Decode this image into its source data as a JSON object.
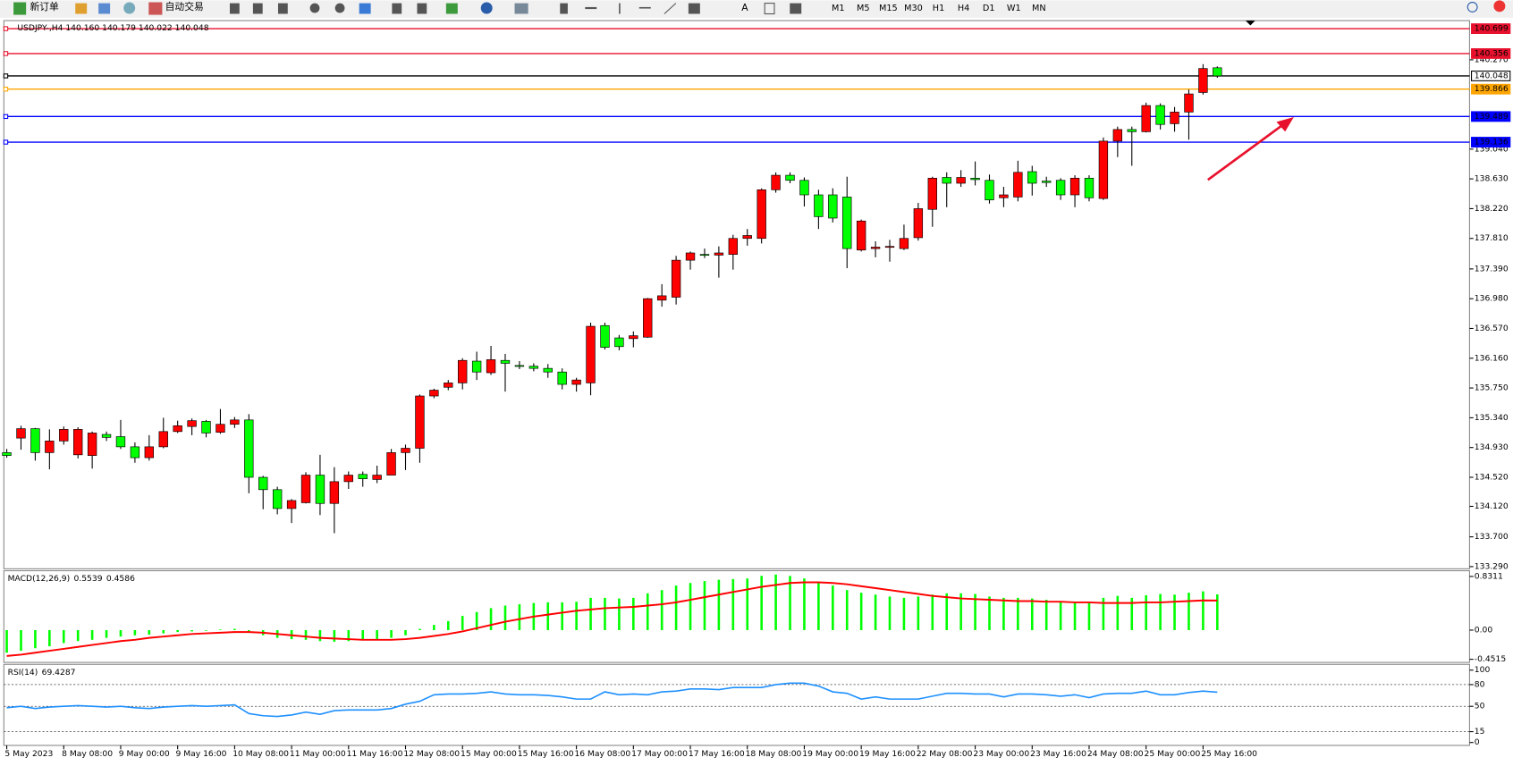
{
  "toolbar": {
    "buttons": [
      "新订单",
      "自动交易"
    ],
    "periods": [
      "M1",
      "M5",
      "M15",
      "M30",
      "H1",
      "H4",
      "D1",
      "W1",
      "MN"
    ]
  },
  "chart_data": [
    {
      "type": "candlestick",
      "title": "USDJPY-,H4  140.160 140.179 140.022 140.048",
      "categories": [
        "5 May 2023",
        null,
        null,
        null,
        "8 May 08:00",
        null,
        null,
        null,
        "9 May 00:00",
        null,
        null,
        null,
        "9 May 16:00",
        null,
        null,
        null,
        "10 May 08:00",
        null,
        null,
        null,
        "11 May 00:00",
        null,
        null,
        null,
        "11 May 16:00",
        null,
        null,
        null,
        "12 May 08:00",
        null,
        null,
        null,
        "15 May 00:00",
        null,
        null,
        null,
        "15 May 16:00",
        null,
        null,
        null,
        "16 May 08:00",
        null,
        null,
        null,
        "17 May 00:00",
        null,
        null,
        null,
        "17 May 16:00",
        null,
        null,
        null,
        "18 May 08:00",
        null,
        null,
        null,
        "19 May 00:00",
        null,
        null,
        null,
        "19 May 16:00",
        null,
        null,
        null,
        "22 May 08:00",
        null,
        null,
        null,
        "23 May 00:00",
        null,
        null,
        null,
        "23 May 16:00",
        null,
        null,
        null,
        "24 May 08:00",
        null,
        null,
        null,
        "25 May 00:00",
        null,
        null,
        null,
        "25 May 16:00",
        null
      ],
      "open": [
        134.86,
        135.06,
        135.19,
        134.86,
        135.02,
        134.83,
        134.82,
        135.11,
        135.08,
        134.94,
        134.79,
        134.94,
        135.15,
        135.22,
        135.29,
        135.14,
        135.25,
        135.31,
        134.52,
        134.35,
        134.09,
        134.17,
        134.55,
        134.16,
        134.46,
        134.56,
        134.49,
        134.55,
        134.86,
        134.92,
        135.64,
        135.76,
        135.82,
        136.12,
        135.96,
        136.13,
        136.06,
        136.05,
        136.02,
        135.97,
        135.8,
        135.82,
        136.61,
        136.44,
        136.43,
        136.45,
        136.96,
        137.0,
        137.51,
        137.59,
        137.58,
        137.59,
        137.81,
        137.81,
        138.48,
        138.68,
        138.61,
        138.41,
        138.41,
        138.38,
        137.65,
        137.67,
        137.69,
        137.67,
        137.82,
        138.21,
        138.65,
        138.57,
        138.64,
        138.61,
        138.37,
        138.38,
        138.73,
        138.6,
        138.61,
        138.41,
        138.64,
        138.36,
        139.15,
        139.31,
        139.28,
        139.64,
        139.39,
        139.55,
        139.82,
        140.16
      ],
      "high": [
        134.91,
        135.23,
        135.2,
        135.18,
        135.22,
        135.21,
        135.15,
        135.15,
        135.31,
        135.0,
        135.1,
        135.34,
        135.3,
        135.33,
        135.31,
        135.46,
        135.35,
        135.39,
        134.54,
        134.39,
        134.22,
        134.59,
        134.83,
        134.66,
        134.6,
        134.6,
        134.68,
        134.91,
        134.97,
        135.66,
        135.74,
        135.86,
        136.16,
        136.25,
        136.33,
        136.22,
        136.12,
        136.09,
        136.08,
        136.02,
        135.89,
        136.65,
        136.65,
        136.48,
        136.53,
        136.99,
        137.18,
        137.57,
        137.63,
        137.67,
        137.7,
        137.86,
        137.94,
        138.5,
        138.72,
        138.72,
        138.65,
        138.48,
        138.5,
        138.66,
        138.07,
        137.77,
        137.79,
        138.0,
        138.3,
        138.66,
        138.72,
        138.75,
        138.87,
        138.69,
        138.52,
        138.88,
        138.81,
        138.66,
        138.64,
        138.68,
        138.68,
        139.2,
        139.35,
        139.35,
        139.68,
        139.67,
        139.62,
        139.86,
        140.21,
        140.179
      ],
      "low": [
        134.79,
        134.9,
        134.75,
        134.63,
        134.97,
        134.78,
        134.64,
        135.02,
        134.91,
        134.72,
        134.75,
        134.92,
        135.13,
        135.1,
        135.07,
        135.12,
        135.2,
        134.3,
        134.08,
        134.01,
        133.89,
        134.16,
        134.0,
        133.75,
        134.36,
        134.39,
        134.44,
        134.55,
        134.62,
        134.72,
        135.61,
        135.72,
        135.73,
        135.86,
        135.93,
        135.7,
        136.01,
        135.98,
        135.89,
        135.73,
        135.7,
        135.65,
        136.28,
        136.27,
        136.31,
        136.44,
        136.87,
        136.9,
        137.38,
        137.54,
        137.27,
        137.38,
        137.71,
        137.74,
        138.44,
        138.57,
        138.25,
        137.94,
        138.03,
        137.4,
        137.63,
        137.55,
        137.49,
        137.65,
        137.78,
        137.97,
        138.24,
        138.52,
        138.54,
        138.29,
        138.24,
        138.32,
        138.4,
        138.52,
        138.34,
        138.24,
        138.32,
        138.34,
        138.93,
        138.81,
        139.27,
        139.31,
        139.28,
        139.17,
        139.79,
        140.022
      ],
      "close": [
        134.82,
        135.19,
        134.86,
        135.02,
        135.18,
        135.18,
        135.13,
        135.07,
        134.94,
        134.79,
        134.94,
        135.15,
        135.23,
        135.3,
        135.13,
        135.25,
        135.31,
        134.52,
        134.35,
        134.09,
        134.2,
        134.55,
        134.16,
        134.46,
        134.55,
        134.5,
        134.55,
        134.86,
        134.92,
        135.64,
        135.72,
        135.82,
        136.13,
        135.97,
        136.14,
        136.09,
        136.05,
        136.02,
        135.97,
        135.8,
        135.86,
        136.6,
        136.31,
        136.32,
        136.47,
        136.98,
        137.02,
        137.51,
        137.61,
        137.58,
        137.61,
        137.81,
        137.85,
        138.48,
        138.68,
        138.61,
        138.41,
        138.11,
        138.09,
        137.67,
        138.05,
        137.69,
        137.7,
        137.81,
        138.22,
        138.64,
        138.57,
        138.65,
        138.62,
        138.34,
        138.41,
        138.72,
        138.57,
        138.58,
        138.41,
        138.64,
        138.37,
        139.15,
        139.31,
        139.28,
        139.64,
        139.38,
        139.55,
        139.8,
        140.15,
        140.048
      ],
      "up_color": "#ff0000",
      "down_color": "#00ff00",
      "hlines": [
        {
          "value": 140.699,
          "color": "#e8112d"
        },
        {
          "value": 140.356,
          "color": "#e8112d"
        },
        {
          "value": 140.048,
          "color": "#000000"
        },
        {
          "value": 139.866,
          "color": "#ffa500"
        },
        {
          "value": 139.489,
          "color": "#0000ff"
        },
        {
          "value": 139.136,
          "color": "#0000ff"
        }
      ],
      "ylim": [
        133.26,
        140.81
      ],
      "yticks": [
        {
          "value": 140.27,
          "label": "140.270"
        },
        {
          "value": 139.04,
          "label": "139.040"
        },
        {
          "value": 138.63,
          "label": "138.630"
        },
        {
          "value": 138.22,
          "label": "138.220"
        },
        {
          "value": 137.81,
          "label": "137.810"
        },
        {
          "value": 137.39,
          "label": "137.390"
        },
        {
          "value": 136.98,
          "label": "136.980"
        },
        {
          "value": 136.57,
          "label": "136.570"
        },
        {
          "value": 136.16,
          "label": "136.160"
        },
        {
          "value": 135.75,
          "label": "135.750"
        },
        {
          "value": 135.34,
          "label": "135.340"
        },
        {
          "value": 134.93,
          "label": "134.930"
        },
        {
          "value": 134.52,
          "label": "134.520"
        },
        {
          "value": 134.12,
          "label": "134.120"
        },
        {
          "value": 133.7,
          "label": "133.700"
        },
        {
          "value": 133.29,
          "label": "133.290"
        }
      ]
    },
    {
      "type": "macd",
      "title": "MACD(12,26,9)",
      "series": [
        {
          "color": "#00ff00",
          "values": [
            -0.35,
            -0.32,
            -0.28,
            -0.25,
            -0.2,
            -0.17,
            -0.15,
            -0.12,
            -0.1,
            -0.08,
            -0.07,
            -0.05,
            -0.03,
            -0.02,
            -0.01,
            0.01,
            0.02,
            -0.03,
            -0.08,
            -0.12,
            -0.14,
            -0.15,
            -0.17,
            -0.18,
            -0.17,
            -0.16,
            -0.15,
            -0.12,
            -0.08,
            0.02,
            0.08,
            0.14,
            0.22,
            0.28,
            0.34,
            0.38,
            0.4,
            0.42,
            0.43,
            0.43,
            0.44,
            0.5,
            0.5,
            0.49,
            0.5,
            0.57,
            0.62,
            0.69,
            0.73,
            0.76,
            0.78,
            0.79,
            0.8,
            0.84,
            0.86,
            0.84,
            0.8,
            0.75,
            0.69,
            0.62,
            0.58,
            0.55,
            0.52,
            0.5,
            0.52,
            0.55,
            0.57,
            0.57,
            0.56,
            0.52,
            0.5,
            0.5,
            0.49,
            0.47,
            0.45,
            0.44,
            0.42,
            0.5,
            0.53,
            0.5,
            0.54,
            0.56,
            0.55,
            0.58,
            0.6,
            0.5539
          ]
        },
        {
          "color": "#ff0000",
          "values": [
            -0.4,
            -0.38,
            -0.35,
            -0.32,
            -0.29,
            -0.26,
            -0.23,
            -0.2,
            -0.17,
            -0.15,
            -0.12,
            -0.1,
            -0.08,
            -0.06,
            -0.05,
            -0.04,
            -0.03,
            -0.03,
            -0.04,
            -0.06,
            -0.08,
            -0.1,
            -0.12,
            -0.13,
            -0.14,
            -0.15,
            -0.15,
            -0.15,
            -0.14,
            -0.12,
            -0.09,
            -0.06,
            -0.02,
            0.03,
            0.08,
            0.13,
            0.17,
            0.21,
            0.24,
            0.27,
            0.3,
            0.32,
            0.34,
            0.35,
            0.36,
            0.38,
            0.4,
            0.43,
            0.47,
            0.51,
            0.55,
            0.59,
            0.63,
            0.67,
            0.7,
            0.73,
            0.74,
            0.74,
            0.73,
            0.71,
            0.68,
            0.65,
            0.62,
            0.59,
            0.56,
            0.53,
            0.51,
            0.49,
            0.48,
            0.47,
            0.46,
            0.45,
            0.45,
            0.44,
            0.44,
            0.43,
            0.43,
            0.42,
            0.42,
            0.42,
            0.43,
            0.43,
            0.44,
            0.45,
            0.46,
            0.4586
          ]
        }
      ],
      "ylim": [
        -0.5,
        0.92
      ],
      "yticks": [
        0.8311,
        {
          "value": 0,
          "label": "0.00"
        },
        -0.4515
      ]
    },
    {
      "type": "rsi",
      "title": "RSI(14)",
      "series": [
        {
          "color": "#1e90ff",
          "values": [
            48,
            50,
            47,
            49,
            50,
            51,
            50,
            49,
            50,
            48,
            47,
            49,
            50,
            51,
            50,
            51,
            52,
            40,
            37,
            36,
            38,
            42,
            39,
            44,
            45,
            45,
            45,
            47,
            53,
            57,
            66,
            67,
            67,
            68,
            70,
            67,
            66,
            66,
            65,
            63,
            60,
            60,
            70,
            66,
            67,
            66,
            70,
            71,
            74,
            74,
            73,
            76,
            76,
            76,
            80,
            82,
            82,
            78,
            70,
            68,
            60,
            63,
            60,
            60,
            60,
            64,
            68,
            68,
            67,
            67,
            63,
            67,
            67,
            66,
            64,
            66,
            62,
            67,
            68,
            68,
            71,
            66,
            66,
            69,
            71,
            69.4287
          ]
        }
      ],
      "ylim": [
        -4,
        108
      ],
      "yticks": [
        100,
        80,
        50,
        15,
        0
      ],
      "levels": [
        80,
        50,
        15
      ]
    }
  ]
}
